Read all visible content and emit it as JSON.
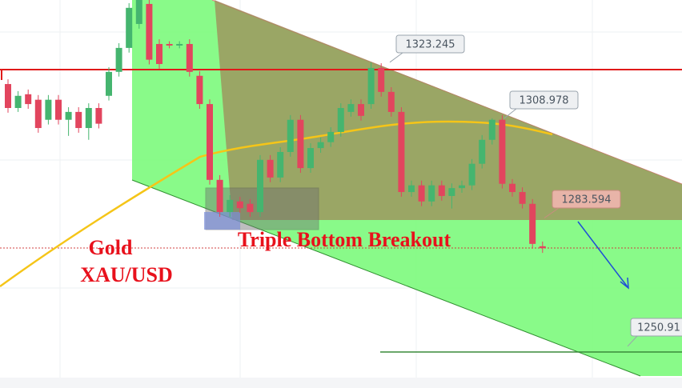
{
  "chart_data": {
    "type": "candlestick",
    "open": [
      1317.7,
      1311.6,
      1315.1,
      1313.7,
      1308.6,
      1313.7,
      1308.6,
      1310.6,
      1306.5,
      1311.6,
      1314.7,
      1320.8,
      1326.9,
      1333.0,
      1338.1,
      1327.9,
      1327.9,
      1327.5,
      1327.9,
      1319.8,
      1312.6,
      1293.3,
      1285.1,
      1287.8,
      1287.2,
      1285.1,
      1298.4,
      1293.9,
      1300.4,
      1308.6,
      1296.3,
      1301.4,
      1302.9,
      1305.5,
      1310.6,
      1312.6,
      1312.6,
      1321.8,
      1315.7,
      1310.6,
      1290.2,
      1291.9,
      1287.8,
      1291.9,
      1289.2,
      1291.2,
      1291.9,
      1297.4,
      1303.5,
      1308.6,
      1292.3,
      1290.2,
      1287.2,
      1276.4
    ],
    "high": [
      1318.9,
      1315.9,
      1316.3,
      1314.9,
      1314.9,
      1314.9,
      1311.8,
      1311.8,
      1312.8,
      1312.8,
      1322.0,
      1328.1,
      1338.3,
      1340.3,
      1339.3,
      1329.1,
      1328.6,
      1328.6,
      1329.1,
      1321.0,
      1313.8,
      1294.5,
      1289.4,
      1289.0,
      1288.4,
      1299.6,
      1299.6,
      1301.6,
      1309.8,
      1309.8,
      1302.6,
      1304.1,
      1306.7,
      1312.8,
      1313.8,
      1313.8,
      1323.2,
      1323.0,
      1316.9,
      1311.8,
      1293.1,
      1293.1,
      1293.1,
      1293.1,
      1292.4,
      1293.1,
      1298.6,
      1304.7,
      1308.978,
      1309.8,
      1293.5,
      1291.4,
      1288.4,
      1277.6
    ],
    "low": [
      1310.4,
      1310.6,
      1311.4,
      1305.3,
      1307.4,
      1307.4,
      1304.5,
      1305.3,
      1303.5,
      1306.4,
      1313.5,
      1319.6,
      1325.7,
      1331.8,
      1322.7,
      1321.6,
      1326.8,
      1326.8,
      1319.6,
      1311.4,
      1292.1,
      1283.9,
      1283.9,
      1284.9,
      1283.9,
      1283.9,
      1292.7,
      1292.7,
      1299.2,
      1295.1,
      1295.1,
      1300.2,
      1301.7,
      1304.3,
      1309.4,
      1308.4,
      1311.4,
      1314.5,
      1309.4,
      1289.0,
      1289.0,
      1286.6,
      1286.6,
      1288.0,
      1286.0,
      1290.0,
      1290.7,
      1296.2,
      1302.3,
      1291.1,
      1289.0,
      1286.0,
      1275.8,
      1274.7
    ],
    "close": [
      1311.6,
      1314.7,
      1312.6,
      1306.5,
      1313.7,
      1308.6,
      1310.6,
      1306.5,
      1311.6,
      1307.6,
      1320.8,
      1326.9,
      1337.1,
      1339.1,
      1323.9,
      1322.8,
      1327.5,
      1327.9,
      1320.8,
      1312.6,
      1293.3,
      1285.1,
      1288.2,
      1286.1,
      1285.1,
      1298.4,
      1293.9,
      1300.4,
      1308.6,
      1296.3,
      1301.4,
      1302.9,
      1305.5,
      1311.6,
      1312.6,
      1309.6,
      1321.8,
      1315.7,
      1310.6,
      1290.2,
      1291.9,
      1287.8,
      1291.9,
      1289.2,
      1291.2,
      1291.9,
      1297.4,
      1303.5,
      1308.6,
      1292.3,
      1290.2,
      1287.2,
      1277.0,
      1275.9
    ],
    "up_color": "#45b56f",
    "down_color": "#e2455e",
    "ylim": [
      1240.3,
      1339.1
    ],
    "levels": [
      1323.245,
      1308.978,
      1283.594,
      1250.91
    ],
    "annotations": [
      "Gold",
      "XAU/USD",
      "Triple Bottom Breakout"
    ]
  }
}
